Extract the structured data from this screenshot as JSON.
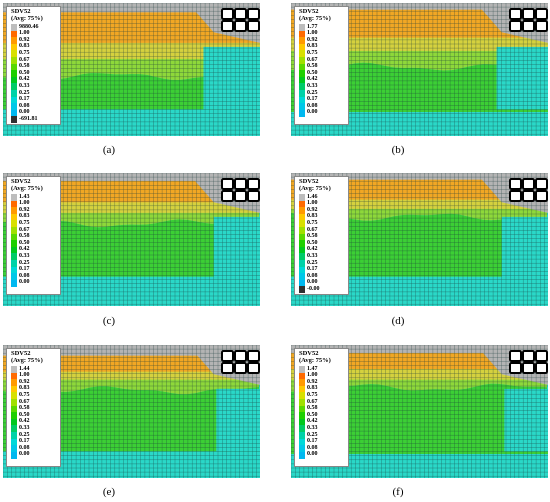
{
  "figure": {
    "panels": [
      {
        "id": "a",
        "caption": "(a)",
        "legend_title": "SDV52",
        "legend_subtitle": "(Avg: 75%)",
        "legend_values": [
          "9880.46",
          "1.00",
          "0.92",
          "0.83",
          "0.75",
          "0.67",
          "0.58",
          "0.50",
          "0.42",
          "0.33",
          "0.25",
          "0.17",
          "0.08",
          "0.00",
          "-691.81"
        ]
      },
      {
        "id": "b",
        "caption": "(b)",
        "legend_title": "SDV52",
        "legend_subtitle": "(Avg: 75%)",
        "legend_values": [
          "1.77",
          "1.00",
          "0.92",
          "0.83",
          "0.75",
          "0.67",
          "0.58",
          "0.50",
          "0.42",
          "0.33",
          "0.25",
          "0.17",
          "0.08",
          "0.00"
        ]
      },
      {
        "id": "c",
        "caption": "(c)",
        "legend_title": "SDV52",
        "legend_subtitle": "(Avg: 75%)",
        "legend_values": [
          "1.43",
          "1.00",
          "0.92",
          "0.83",
          "0.75",
          "0.67",
          "0.58",
          "0.50",
          "0.42",
          "0.33",
          "0.25",
          "0.17",
          "0.08",
          "0.00"
        ]
      },
      {
        "id": "d",
        "caption": "(d)",
        "legend_title": "SDV52",
        "legend_subtitle": "(Avg: 75%)",
        "legend_values": [
          "1.46",
          "1.00",
          "0.92",
          "0.83",
          "0.75",
          "0.67",
          "0.58",
          "0.50",
          "0.42",
          "0.33",
          "0.25",
          "0.17",
          "0.08",
          "0.00",
          "-0.00"
        ]
      },
      {
        "id": "e",
        "caption": "(e)",
        "legend_title": "SDV52",
        "legend_subtitle": "(Avg: 75%)",
        "legend_values": [
          "1.44",
          "1.00",
          "0.92",
          "0.83",
          "0.75",
          "0.67",
          "0.58",
          "0.50",
          "0.42",
          "0.33",
          "0.25",
          "0.17",
          "0.08",
          "0.00"
        ]
      },
      {
        "id": "f",
        "caption": "(f)",
        "legend_title": "SDV52",
        "legend_subtitle": "(Avg: 75%)",
        "legend_values": [
          "1.47",
          "1.00",
          "0.92",
          "0.83",
          "0.75",
          "0.67",
          "0.58",
          "0.50",
          "0.42",
          "0.33",
          "0.25",
          "0.17",
          "0.08",
          "0.00"
        ]
      }
    ],
    "colors": {
      "mesh_line": "#1a3b3b",
      "legend_scale": [
        "#bdbdbd",
        "#ff6a00",
        "#ff9a00",
        "#ffc800",
        "#d8e000",
        "#a0e000",
        "#5ad800",
        "#1ecf00",
        "#00c81e",
        "#00cc66",
        "#00d2a8",
        "#00d8d8",
        "#00c8e8",
        "#00b8f0",
        "#303030"
      ],
      "zone_gray": "#b4b4b4",
      "zone_orange": "#f6a020",
      "zone_yellow": "#e2d040",
      "zone_lightgreen": "#8ed83a",
      "zone_green": "#3ccf35",
      "zone_cyan": "#2ad8c8",
      "tunnel_fill": "#ffffff",
      "tunnel_edge": "#000000"
    }
  }
}
